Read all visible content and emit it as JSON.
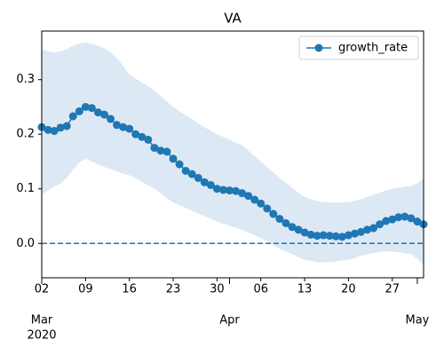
{
  "chart_data": {
    "type": "line",
    "title": "VA",
    "x": [
      "2020-03-02",
      "2020-03-03",
      "2020-03-04",
      "2020-03-05",
      "2020-03-06",
      "2020-03-07",
      "2020-03-08",
      "2020-03-09",
      "2020-03-10",
      "2020-03-11",
      "2020-03-12",
      "2020-03-13",
      "2020-03-14",
      "2020-03-15",
      "2020-03-16",
      "2020-03-17",
      "2020-03-18",
      "2020-03-19",
      "2020-03-20",
      "2020-03-21",
      "2020-03-22",
      "2020-03-23",
      "2020-03-24",
      "2020-03-25",
      "2020-03-26",
      "2020-03-27",
      "2020-03-28",
      "2020-03-29",
      "2020-03-30",
      "2020-03-31",
      "2020-04-01",
      "2020-04-02",
      "2020-04-03",
      "2020-04-04",
      "2020-04-05",
      "2020-04-06",
      "2020-04-07",
      "2020-04-08",
      "2020-04-09",
      "2020-04-10",
      "2020-04-11",
      "2020-04-12",
      "2020-04-13",
      "2020-04-14",
      "2020-04-15",
      "2020-04-16",
      "2020-04-17",
      "2020-04-18",
      "2020-04-19",
      "2020-04-20",
      "2020-04-21",
      "2020-04-22",
      "2020-04-23",
      "2020-04-24",
      "2020-04-25",
      "2020-04-26",
      "2020-04-27",
      "2020-04-28",
      "2020-04-29",
      "2020-04-30",
      "2020-05-01",
      "2020-05-02"
    ],
    "series": [
      {
        "name": "growth_rate",
        "color": "#1f77b4",
        "values": [
          0.213,
          0.208,
          0.206,
          0.212,
          0.215,
          0.233,
          0.242,
          0.25,
          0.248,
          0.24,
          0.236,
          0.228,
          0.217,
          0.213,
          0.21,
          0.2,
          0.195,
          0.19,
          0.175,
          0.17,
          0.168,
          0.155,
          0.145,
          0.133,
          0.127,
          0.12,
          0.112,
          0.107,
          0.1,
          0.098,
          0.097,
          0.096,
          0.092,
          0.087,
          0.08,
          0.073,
          0.064,
          0.054,
          0.045,
          0.037,
          0.03,
          0.025,
          0.02,
          0.016,
          0.014,
          0.015,
          0.014,
          0.013,
          0.012,
          0.015,
          0.018,
          0.021,
          0.025,
          0.028,
          0.035,
          0.041,
          0.044,
          0.048,
          0.049,
          0.046,
          0.04,
          0.035
        ]
      }
    ],
    "band": {
      "color": "#dce9f5",
      "upper": [
        0.356,
        0.352,
        0.35,
        0.352,
        0.356,
        0.362,
        0.366,
        0.368,
        0.366,
        0.362,
        0.358,
        0.35,
        0.34,
        0.325,
        0.31,
        0.302,
        0.295,
        0.288,
        0.28,
        0.27,
        0.26,
        0.25,
        0.242,
        0.235,
        0.228,
        0.22,
        0.213,
        0.206,
        0.2,
        0.195,
        0.19,
        0.185,
        0.18,
        0.17,
        0.16,
        0.15,
        0.14,
        0.13,
        0.12,
        0.111,
        0.102,
        0.093,
        0.085,
        0.081,
        0.078,
        0.075,
        0.075,
        0.075,
        0.075,
        0.075,
        0.078,
        0.081,
        0.085,
        0.089,
        0.093,
        0.097,
        0.1,
        0.102,
        0.104,
        0.105,
        0.11,
        0.118
      ],
      "lower": [
        0.09,
        0.097,
        0.104,
        0.11,
        0.12,
        0.135,
        0.148,
        0.155,
        0.15,
        0.145,
        0.14,
        0.136,
        0.132,
        0.128,
        0.125,
        0.119,
        0.113,
        0.106,
        0.1,
        0.092,
        0.083,
        0.075,
        0.07,
        0.065,
        0.06,
        0.055,
        0.05,
        0.045,
        0.04,
        0.036,
        0.032,
        0.029,
        0.025,
        0.02,
        0.015,
        0.01,
        0.003,
        -0.003,
        -0.01,
        -0.015,
        -0.02,
        -0.025,
        -0.03,
        -0.032,
        -0.034,
        -0.035,
        -0.034,
        -0.033,
        -0.031,
        -0.03,
        -0.027,
        -0.023,
        -0.02,
        -0.018,
        -0.016,
        -0.015,
        -0.015,
        -0.016,
        -0.018,
        -0.02,
        -0.028,
        -0.04
      ]
    },
    "hline": {
      "value": 0,
      "color": "#1f77b4"
    },
    "xlim": [
      "2020-03-02",
      "2020-05-02"
    ],
    "xticks": [
      {
        "value": "2020-03-02",
        "label": "02"
      },
      {
        "value": "2020-03-09",
        "label": "09"
      },
      {
        "value": "2020-03-16",
        "label": "16"
      },
      {
        "value": "2020-03-23",
        "label": "23"
      },
      {
        "value": "2020-03-30",
        "label": "30"
      },
      {
        "value": "2020-04-06",
        "label": "06"
      },
      {
        "value": "2020-04-13",
        "label": "13"
      },
      {
        "value": "2020-04-20",
        "label": "20"
      },
      {
        "value": "2020-04-27",
        "label": "27"
      }
    ],
    "xmajor_ticks": [
      {
        "value": "2020-03-02",
        "label": "Mar"
      },
      {
        "value": "2020-04-01",
        "label": "Apr"
      },
      {
        "value": "2020-05-01",
        "label": "May"
      }
    ],
    "xyear": {
      "value": "2020-03-02",
      "label": "2020"
    },
    "ylim": [
      -0.063,
      0.389
    ],
    "yticks": [
      {
        "value": 0,
        "label": "0.0"
      },
      0.1,
      0.2,
      0.3
    ],
    "legend": "upper right"
  }
}
